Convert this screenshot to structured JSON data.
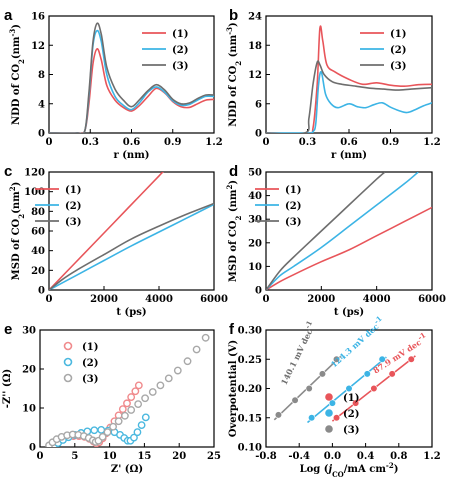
{
  "figure": {
    "background": "#ffffff"
  },
  "chart_data": [
    {
      "panel": "a",
      "type": "line",
      "xlabel": "r (nm)",
      "ylabel": "NDD of CO2(nm-3)",
      "ylabel_parts": [
        "NDD of CO",
        "2",
        "(nm",
        "-3",
        ")"
      ],
      "xlim": [
        0,
        1.2
      ],
      "ylim": [
        0,
        16
      ],
      "xticks": [
        0,
        0.3,
        0.6,
        0.9,
        1.2
      ],
      "xtick_labels": [
        "0",
        "0.3",
        "0.6",
        "0.9",
        "1.2"
      ],
      "yticks": [
        0,
        4,
        8,
        12,
        16
      ],
      "ytick_labels": [
        "0",
        "4",
        "8",
        "12",
        "16"
      ],
      "legend_position": "top-right",
      "series": [
        {
          "name": "(1)",
          "color": "#e8555a",
          "x": [
            0,
            0.2,
            0.26,
            0.29,
            0.32,
            0.35,
            0.38,
            0.42,
            0.48,
            0.54,
            0.6,
            0.66,
            0.72,
            0.78,
            0.84,
            0.9,
            0.96,
            1.02,
            1.08,
            1.14,
            1.2
          ],
          "y": [
            0,
            0,
            0.3,
            4,
            9.5,
            11.5,
            10,
            6.5,
            4.5,
            3.5,
            3,
            3.8,
            5,
            6.1,
            5.5,
            4.3,
            3.6,
            3.5,
            4,
            4.5,
            4.6
          ]
        },
        {
          "name": "(2)",
          "color": "#3cb4e5",
          "x": [
            0,
            0.2,
            0.26,
            0.29,
            0.32,
            0.35,
            0.38,
            0.42,
            0.48,
            0.54,
            0.6,
            0.66,
            0.72,
            0.78,
            0.84,
            0.9,
            0.96,
            1.02,
            1.08,
            1.14,
            1.2
          ],
          "y": [
            0,
            0,
            0.3,
            5,
            12,
            14,
            12.5,
            8,
            5,
            3.8,
            3.2,
            4.2,
            5.6,
            6.3,
            5.6,
            4.4,
            3.8,
            3.9,
            4.5,
            5,
            5
          ]
        },
        {
          "name": "(3)",
          "color": "#6e6e6e",
          "x": [
            0,
            0.2,
            0.26,
            0.29,
            0.32,
            0.35,
            0.38,
            0.42,
            0.48,
            0.54,
            0.6,
            0.66,
            0.72,
            0.78,
            0.84,
            0.9,
            0.96,
            1.02,
            1.08,
            1.14,
            1.2
          ],
          "y": [
            0,
            0,
            0.3,
            5.5,
            12.5,
            15,
            13.5,
            9,
            6,
            4.5,
            3.6,
            4.6,
            5.8,
            6.6,
            5.9,
            4.6,
            4,
            4.1,
            4.7,
            5.2,
            5.2
          ]
        }
      ]
    },
    {
      "panel": "b",
      "type": "line",
      "xlabel": "r (nm)",
      "ylabel": "NDD of CO2 (nm-3)",
      "ylabel_parts": [
        "NDD of CO",
        "2",
        " (nm",
        "-3",
        ")"
      ],
      "xlim": [
        0,
        1.2
      ],
      "ylim": [
        0,
        24
      ],
      "xticks": [
        0,
        0.3,
        0.6,
        0.9,
        1.2
      ],
      "xtick_labels": [
        "0",
        "0.3",
        "0.6",
        "0.9",
        "1.2"
      ],
      "yticks": [
        0,
        6,
        12,
        18,
        24
      ],
      "ytick_labels": [
        "0",
        "6",
        "12",
        "18",
        "24"
      ],
      "legend_position": "top-right",
      "series": [
        {
          "name": "(1)",
          "color": "#e8555a",
          "x": [
            0,
            0.3,
            0.34,
            0.37,
            0.39,
            0.41,
            0.44,
            0.5,
            0.6,
            0.7,
            0.8,
            0.9,
            1.0,
            1.1,
            1.2
          ],
          "y": [
            0,
            0,
            1,
            10,
            21.5,
            19,
            14,
            12.5,
            11,
            10,
            10.3,
            9.8,
            9.6,
            9.9,
            10
          ]
        },
        {
          "name": "(2)",
          "color": "#3cb4e5",
          "x": [
            0,
            0.3,
            0.34,
            0.36,
            0.38,
            0.4,
            0.43,
            0.47,
            0.52,
            0.6,
            0.66,
            0.72,
            0.78,
            0.84,
            0.9,
            0.96,
            1.02,
            1.08,
            1.14,
            1.2
          ],
          "y": [
            0,
            0,
            0.3,
            2,
            10,
            12.5,
            8,
            6,
            5.2,
            6,
            5.4,
            5.2,
            5.8,
            6.2,
            5.3,
            4.6,
            4.2,
            4.8,
            5.6,
            6.2
          ]
        },
        {
          "name": "(3)",
          "color": "#6e6e6e",
          "x": [
            0,
            0.28,
            0.31,
            0.34,
            0.37,
            0.39,
            0.42,
            0.48,
            0.55,
            0.65,
            0.75,
            0.85,
            0.95,
            1.05,
            1.2
          ],
          "y": [
            0,
            0,
            3,
            10,
            14.5,
            14,
            12,
            10.5,
            10,
            9.6,
            9.2,
            9,
            8.8,
            9,
            9.3
          ]
        }
      ]
    },
    {
      "panel": "c",
      "type": "line",
      "xlabel": "t (ps)",
      "ylabel": "MSD of CO2(nm2)",
      "ylabel_parts": [
        "MSD of CO",
        "2",
        "(nm",
        "2",
        ")"
      ],
      "xlim": [
        0,
        6000
      ],
      "ylim": [
        0,
        120
      ],
      "xticks": [
        0,
        2000,
        4000,
        6000
      ],
      "xtick_labels": [
        "0",
        "2000",
        "4000",
        "6000"
      ],
      "yticks": [
        0,
        20,
        40,
        60,
        80,
        100,
        120
      ],
      "ytick_labels": [
        "0",
        "20",
        "40",
        "60",
        "80",
        "100",
        "120"
      ],
      "legend_position": "top-left",
      "series": [
        {
          "name": "(1)",
          "color": "#e8555a",
          "x": [
            0,
            1000,
            2000,
            3000,
            4000,
            4200
          ],
          "y": [
            0,
            29,
            58,
            87,
            116,
            122
          ]
        },
        {
          "name": "(2)",
          "color": "#3cb4e5",
          "x": [
            0,
            1000,
            2000,
            3000,
            4000,
            5000,
            6000
          ],
          "y": [
            0,
            15,
            30,
            45,
            59,
            73,
            87
          ]
        },
        {
          "name": "(3)",
          "color": "#6e6e6e",
          "x": [
            0,
            500,
            1000,
            2000,
            3000,
            4000,
            5000,
            6000
          ],
          "y": [
            0,
            11,
            20,
            36,
            52,
            65,
            77,
            88
          ]
        }
      ]
    },
    {
      "panel": "d",
      "type": "line",
      "xlabel": "t (ps)",
      "ylabel": "MSD of CO2 (nm2)",
      "ylabel_parts": [
        "MSD of CO",
        "2",
        " (nm",
        "2",
        ")"
      ],
      "xlim": [
        0,
        6000
      ],
      "ylim": [
        0,
        50
      ],
      "xticks": [
        0,
        2000,
        4000,
        6000
      ],
      "xtick_labels": [
        "0",
        "2000",
        "4000",
        "6000"
      ],
      "yticks": [
        0,
        10,
        20,
        30,
        40,
        50
      ],
      "ytick_labels": [
        "0",
        "10",
        "20",
        "30",
        "40",
        "50"
      ],
      "legend_position": "top-left",
      "series": [
        {
          "name": "(1)",
          "color": "#e8555a",
          "x": [
            0,
            500,
            1000,
            2000,
            3000,
            4000,
            5000,
            6000
          ],
          "y": [
            0,
            3.5,
            6.5,
            12,
            17,
            23,
            29,
            35
          ]
        },
        {
          "name": "(2)",
          "color": "#3cb4e5",
          "x": [
            0,
            500,
            1000,
            2000,
            3000,
            4000,
            5000,
            5500
          ],
          "y": [
            0,
            6,
            10,
            18,
            27,
            36,
            45,
            50
          ]
        },
        {
          "name": "(3)",
          "color": "#6e6e6e",
          "x": [
            0,
            500,
            1000,
            2000,
            3000,
            4000,
            4300
          ],
          "y": [
            0,
            8,
            14,
            25,
            36,
            47,
            50
          ]
        }
      ]
    },
    {
      "panel": "e",
      "type": "scatter",
      "xlabel": "Z' (Ω)",
      "ylabel": "-Z'' (Ω)",
      "xlim": [
        0,
        25
      ],
      "ylim": [
        0,
        30
      ],
      "xticks": [
        0,
        5,
        10,
        15,
        20,
        25
      ],
      "xtick_labels": [
        "0",
        "5",
        "10",
        "15",
        "20",
        "25"
      ],
      "yticks": [
        0,
        10,
        20,
        30
      ],
      "ytick_labels": [
        "0",
        "10",
        "20",
        "30"
      ],
      "legend_position": "top-left",
      "series": [
        {
          "name": "(1)",
          "color": "#f08a8c",
          "x": [
            1.5,
            2,
            2.6,
            3.3,
            4,
            4.8,
            5.6,
            6.4,
            7.1,
            7.7,
            8.1,
            8.5,
            9,
            9.5,
            10.1,
            10.7,
            11.3,
            11.9,
            12.5,
            13.1,
            13.7,
            14.2
          ],
          "y": [
            0.3,
            0.9,
            1.6,
            2.2,
            2.6,
            2.8,
            2.8,
            2.6,
            2.1,
            1.4,
            0.9,
            1.2,
            2.2,
            3.5,
            5,
            6.6,
            8.1,
            9.7,
            11.2,
            12.8,
            14.3,
            15.8
          ]
        },
        {
          "name": "(2)",
          "color": "#4ab8df",
          "x": [
            2,
            2.6,
            3.3,
            4.1,
            5,
            5.9,
            6.8,
            7.8,
            8.8,
            9.8,
            10.7,
            11.5,
            12.1,
            12.6,
            13,
            13.5,
            14,
            14.6,
            15.2
          ],
          "y": [
            0.3,
            1,
            1.8,
            2.5,
            3.1,
            3.6,
            4,
            4.3,
            4.4,
            4.2,
            3.8,
            3.1,
            2.3,
            1.6,
            1.6,
            2.4,
            3.8,
            5.6,
            7.6
          ]
        },
        {
          "name": "(3)",
          "color": "#a8a8a8",
          "x": [
            1.3,
            1.8,
            2.4,
            3.1,
            3.9,
            4.7,
            5.5,
            6.3,
            7,
            7.6,
            8,
            8.4,
            9,
            9.7,
            10.5,
            11.3,
            12.2,
            13.1,
            14.1,
            15.1,
            16.2,
            17.3,
            18.5,
            19.8,
            21.2,
            22.5,
            23.8
          ],
          "y": [
            0.4,
            1.2,
            2,
            2.6,
            3,
            3.2,
            3.1,
            2.8,
            2.3,
            1.7,
            1.3,
            1.6,
            2.6,
            3.8,
            5.2,
            6.6,
            8,
            9.5,
            11,
            12.5,
            14.1,
            15.8,
            17.6,
            19.6,
            22,
            25,
            28
          ]
        }
      ]
    },
    {
      "panel": "f",
      "type": "scatter",
      "xlabel": "Log (jCO/mA cm-2)",
      "xlabel_parts": [
        "Log (",
        "j",
        "CO",
        "/mA cm",
        "-2",
        ")"
      ],
      "ylabel": "Overpotential (V)",
      "xlim": [
        -0.8,
        1.2
      ],
      "ylim": [
        0.1,
        0.3
      ],
      "xticks": [
        -0.8,
        -0.4,
        0.0,
        0.4,
        0.8,
        1.2
      ],
      "xtick_labels": [
        "-0.8",
        "-0.4",
        "0.0",
        "0.4",
        "0.8",
        "1.2"
      ],
      "yticks": [
        0.1,
        0.15,
        0.2,
        0.25,
        0.3
      ],
      "ytick_labels": [
        "0.10",
        "0.15",
        "0.20",
        "0.25",
        "0.30"
      ],
      "legend_position": "bottom-right",
      "annotations": [
        {
          "text": "87.9 mV dec-1",
          "parts": [
            "87.9 mV dec",
            "-1"
          ],
          "color": "#e8555a",
          "x": 0.52,
          "y": 0.225,
          "angle": -33
        },
        {
          "text": "124.3 mV dec-1",
          "parts": [
            "124.3 mV dec",
            "-1"
          ],
          "color": "#3cb4e5",
          "x": 0.02,
          "y": 0.235,
          "angle": -42
        },
        {
          "text": "140.1 mV dec-1",
          "parts": [
            "140.1 mV dec",
            "-1"
          ],
          "color": "#6e6e6e",
          "x": -0.56,
          "y": 0.205,
          "angle": -64
        }
      ],
      "series": [
        {
          "name": "(1)",
          "color": "#e8555a",
          "x": [
            0.05,
            0.28,
            0.5,
            0.72,
            0.95
          ],
          "y": [
            0.15,
            0.175,
            0.2,
            0.225,
            0.25
          ]
        },
        {
          "name": "(2)",
          "color": "#3cb4e5",
          "x": [
            -0.25,
            0.0,
            0.2,
            0.42,
            0.6
          ],
          "y": [
            0.15,
            0.175,
            0.2,
            0.225,
            0.25
          ]
        },
        {
          "name": "(3)",
          "color": "#8a8a8a",
          "x": [
            -0.65,
            -0.45,
            -0.28,
            -0.12,
            0.05
          ],
          "y": [
            0.155,
            0.18,
            0.2,
            0.225,
            0.25
          ]
        }
      ]
    }
  ]
}
